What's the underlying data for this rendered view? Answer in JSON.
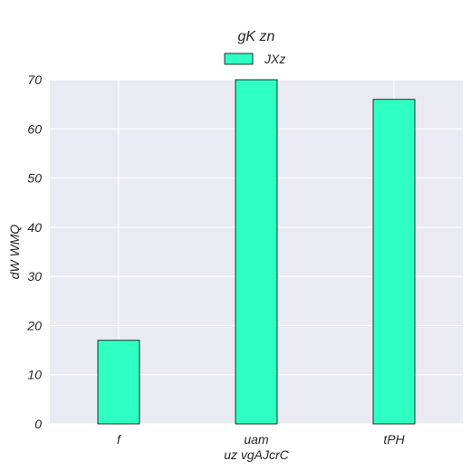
{
  "chart_data": {
    "type": "bar",
    "title": "gK zn",
    "xlabel": "uz vgAJcrC",
    "ylabel": "dW WMQ",
    "categories": [
      "f",
      "uam",
      "tPH"
    ],
    "series": [
      {
        "name": "JXz",
        "values": [
          17,
          70,
          66
        ]
      }
    ],
    "ylim": [
      0,
      70
    ],
    "yticks": [
      0,
      10,
      20,
      30,
      40,
      50,
      60,
      70
    ],
    "grid": true,
    "legend": "top-center",
    "colors": {
      "bar": "#2effc3",
      "bar_edge": "#000000",
      "plot_bg": "#eaeaf2",
      "grid": "#ffffff",
      "text": "#262626"
    }
  }
}
